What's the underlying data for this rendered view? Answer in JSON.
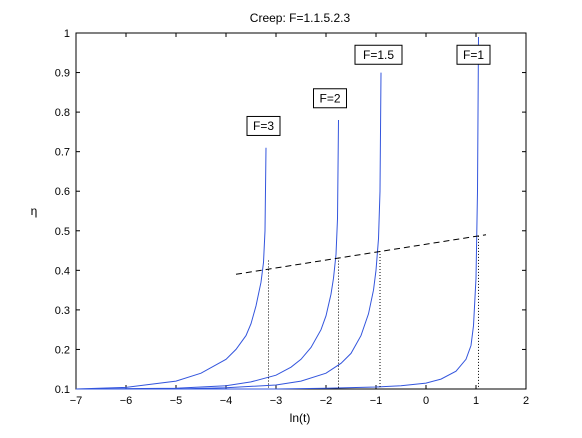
{
  "chart_data": {
    "type": "line",
    "title": "Creep: F=1.1.5.2.3",
    "xlabel": "ln(t)",
    "ylabel": "η",
    "xlim": [
      -7,
      2
    ],
    "ylim": [
      0.1,
      1
    ],
    "x_ticks": [
      -7,
      -6,
      -5,
      -4,
      -3,
      -2,
      -1,
      0,
      1,
      2
    ],
    "y_ticks": [
      0.1,
      0.2,
      0.3,
      0.4,
      0.5,
      0.6,
      0.7,
      0.8,
      0.9,
      1
    ],
    "grid": false,
    "series_color": "#3355dd",
    "series": [
      {
        "label": "F=1",
        "x_end": 1.05,
        "y_end": 0.99,
        "x": [
          -7,
          -5,
          -3,
          -2,
          -1,
          -0.5,
          0,
          0.3,
          0.6,
          0.8,
          0.9,
          0.95,
          1.0,
          1.03,
          1.05
        ],
        "y": [
          0.1,
          0.1,
          0.1,
          0.102,
          0.105,
          0.108,
          0.115,
          0.125,
          0.145,
          0.175,
          0.21,
          0.26,
          0.38,
          0.6,
          0.99
        ]
      },
      {
        "label": "F=1.5",
        "x_end": -0.9,
        "y_end": 0.9,
        "x": [
          -7,
          -5,
          -4,
          -3,
          -2.5,
          -2,
          -1.7,
          -1.5,
          -1.3,
          -1.15,
          -1.05,
          -1.0,
          -0.95,
          -0.92,
          -0.9
        ],
        "y": [
          0.1,
          0.1,
          0.103,
          0.11,
          0.12,
          0.14,
          0.165,
          0.19,
          0.235,
          0.29,
          0.35,
          0.4,
          0.48,
          0.6,
          0.9
        ]
      },
      {
        "label": "F=2",
        "x_end": -1.75,
        "y_end": 0.78,
        "x": [
          -7,
          -5,
          -4,
          -3.5,
          -3,
          -2.7,
          -2.5,
          -2.3,
          -2.1,
          -2.0,
          -1.9,
          -1.85,
          -1.8,
          -1.77,
          -1.75
        ],
        "y": [
          0.1,
          0.102,
          0.108,
          0.118,
          0.135,
          0.155,
          0.175,
          0.205,
          0.25,
          0.285,
          0.34,
          0.38,
          0.44,
          0.53,
          0.78
        ]
      },
      {
        "label": "F=3",
        "x_end": -3.2,
        "y_end": 0.71,
        "x": [
          -7,
          -6,
          -5,
          -4.5,
          -4,
          -3.8,
          -3.6,
          -3.5,
          -3.4,
          -3.3,
          -3.25,
          -3.22,
          -3.2
        ],
        "y": [
          0.1,
          0.104,
          0.12,
          0.14,
          0.175,
          0.2,
          0.235,
          0.265,
          0.31,
          0.37,
          0.42,
          0.5,
          0.71
        ]
      }
    ],
    "limit_line": {
      "style": "dashed",
      "x": [
        -3.8,
        1.2
      ],
      "y": [
        0.39,
        0.49
      ]
    },
    "dotted_markers": [
      {
        "x": -3.15,
        "y": 0.425
      },
      {
        "x": -1.75,
        "y": 0.432
      },
      {
        "x": -0.92,
        "y": 0.449
      },
      {
        "x": 1.05,
        "y": 0.487
      }
    ],
    "annotations": [
      {
        "text": "F=3",
        "x": -3.25,
        "y": 0.765
      },
      {
        "text": "F=2",
        "x": -1.92,
        "y": 0.835
      },
      {
        "text": "F=1.5",
        "x": -0.95,
        "y": 0.945
      },
      {
        "text": "F=1",
        "x": 0.95,
        "y": 0.945
      }
    ]
  }
}
